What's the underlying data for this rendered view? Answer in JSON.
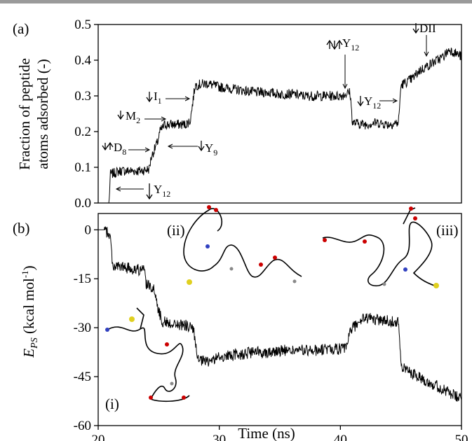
{
  "chart_data": [
    {
      "type": "line",
      "panel_label": "(a)",
      "ylabel": "Fraction of peptide atoms adsorbed (-)",
      "ylabel_lines": [
        "Fraction of peptide",
        "atoms adsorbed (-)"
      ],
      "xlim": [
        20,
        50
      ],
      "ylim": [
        0.0,
        0.5
      ],
      "yticks": [
        "0.0",
        "0.1",
        "0.2",
        "0.3",
        "0.4",
        "0.5"
      ],
      "series": [
        {
          "x": [
            20.0,
            20.9,
            21.0,
            21.8,
            22.8,
            23.5,
            24.2,
            24.4,
            24.9,
            25.1,
            25.5,
            25.9,
            26.5,
            27.2,
            27.6,
            28.0,
            29.0,
            30.0,
            31.0,
            32.0,
            33.0,
            34.0,
            35.0,
            36.0,
            37.0,
            38.0,
            39.0,
            40.0,
            40.8,
            41.0,
            42.0,
            43.0,
            44.0,
            44.8,
            45.0,
            45.5,
            46.0,
            46.5,
            47.0,
            47.5,
            48.0,
            48.5,
            49.0,
            49.5,
            50.0
          ],
          "y": [
            0.0,
            0.0,
            0.08,
            0.09,
            0.09,
            0.09,
            0.095,
            0.13,
            0.17,
            0.2,
            0.22,
            0.22,
            0.22,
            0.22,
            0.23,
            0.33,
            0.335,
            0.325,
            0.32,
            0.315,
            0.31,
            0.31,
            0.305,
            0.305,
            0.3,
            0.3,
            0.3,
            0.3,
            0.31,
            0.225,
            0.22,
            0.225,
            0.22,
            0.225,
            0.33,
            0.34,
            0.35,
            0.37,
            0.38,
            0.39,
            0.4,
            0.41,
            0.43,
            0.42,
            0.41
          ]
        }
      ],
      "annotations": [
        "D8",
        "M2",
        "I1",
        "Y9",
        "Y12",
        "Y12",
        "Y12",
        "DII"
      ]
    },
    {
      "type": "line",
      "panel_label": "(b)",
      "ylabel": "E_PS (kcal mol-1)",
      "ylabel_main": "E",
      "ylabel_sub": "PS",
      "ylabel_unit": " (kcal mol",
      "ylabel_exp": "-1",
      "ylabel_close": ")",
      "xlabel": "Time (ns)",
      "xlim": [
        20,
        50
      ],
      "ylim": [
        -60,
        5
      ],
      "xticks": [
        "20",
        "30",
        "40",
        "50"
      ],
      "yticks": [
        "0",
        "-15",
        "-30",
        "-45",
        "-60"
      ],
      "series": [
        {
          "x": [
            20.0,
            20.5,
            20.8,
            21.0,
            21.2,
            22.0,
            23.0,
            23.8,
            24.0,
            24.5,
            24.8,
            25.0,
            25.3,
            25.8,
            26.5,
            27.5,
            27.9,
            28.2,
            29.0,
            30.0,
            31.0,
            32.0,
            33.0,
            34.0,
            35.0,
            36.0,
            37.0,
            38.0,
            39.0,
            40.0,
            40.5,
            40.7,
            41.0,
            42.0,
            43.0,
            44.0,
            44.8,
            45.0,
            45.5,
            46.0,
            46.5,
            47.0,
            47.5,
            48.0,
            48.5,
            49.0,
            49.5,
            50.0
          ],
          "y": [
            0.0,
            0.0,
            -1.0,
            -2.0,
            -11.0,
            -11.5,
            -12.0,
            -12.5,
            -17.0,
            -17.5,
            -21.0,
            -25.0,
            -28.0,
            -28.5,
            -29.0,
            -29.5,
            -31.0,
            -40.0,
            -40.5,
            -39.0,
            -38.5,
            -38.0,
            -37.5,
            -37.5,
            -37.0,
            -37.0,
            -37.0,
            -37.0,
            -36.5,
            -36.5,
            -36.5,
            -32.0,
            -30.0,
            -27.0,
            -27.5,
            -28.0,
            -28.0,
            -42.0,
            -43.0,
            -44.0,
            -45.0,
            -46.0,
            -47.0,
            -48.0,
            -49.0,
            -50.0,
            -51.0,
            -52.0
          ]
        }
      ],
      "annotations": [
        "(i)",
        "(ii)",
        "(iii)"
      ]
    }
  ],
  "labels": {
    "ann_D": "D",
    "ann_D_sub": "8",
    "ann_M": "M",
    "ann_M_sub": "2",
    "ann_I": "I",
    "ann_I_sub": "1",
    "ann_Y": "Y",
    "ann_Y9_sub": "9",
    "ann_Y12_sub": "12",
    "ann_DII": "DII",
    "mol_i": "(i)",
    "mol_ii": "(ii)",
    "mol_iii": "(iii)"
  },
  "colors": {
    "line": "#000000",
    "axis": "#000000",
    "top_rule": "#9a9a9a"
  }
}
